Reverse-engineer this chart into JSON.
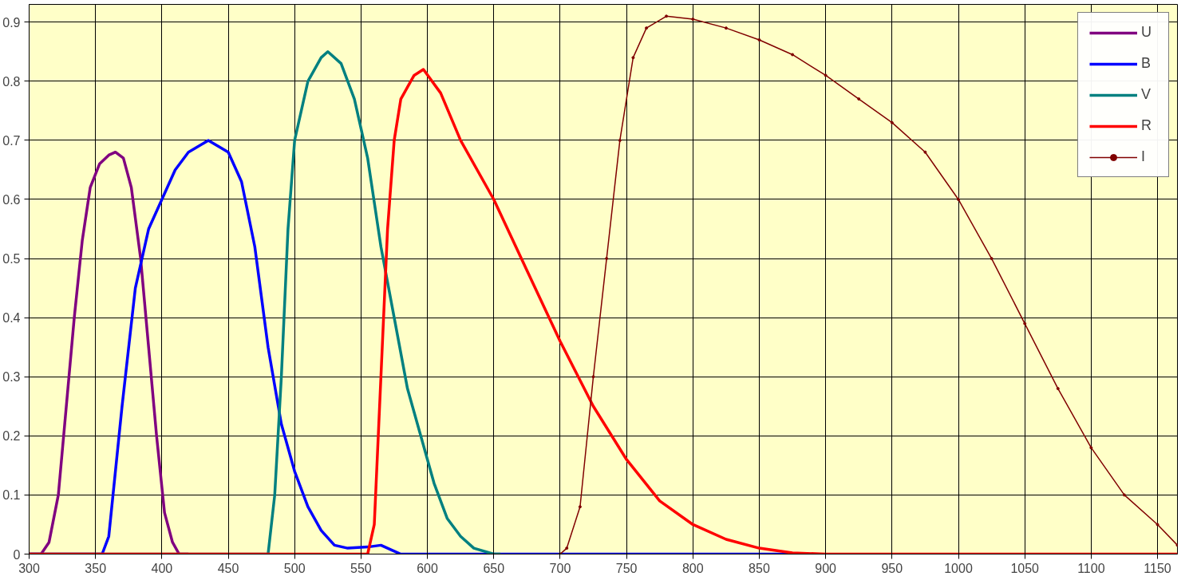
{
  "chart_data": {
    "type": "line",
    "xlim": [
      300,
      1165
    ],
    "ylim": [
      0,
      0.93
    ],
    "xticks": [
      300,
      350,
      400,
      450,
      500,
      550,
      600,
      650,
      700,
      750,
      800,
      850,
      900,
      950,
      1000,
      1050,
      1100,
      1150
    ],
    "yticks": [
      0,
      0.1,
      0.2,
      0.3,
      0.4,
      0.5,
      0.6,
      0.7,
      0.8,
      0.9
    ],
    "grid": true,
    "legend": "top right",
    "marker": "none",
    "series": [
      {
        "name": "U",
        "color": "#800080",
        "x": [
          300,
          309,
          315,
          322,
          328,
          334,
          340,
          346,
          353,
          360,
          365,
          371,
          377,
          384,
          390,
          396,
          402,
          408,
          413,
          420
        ],
        "values": [
          0,
          0,
          0.02,
          0.1,
          0.25,
          0.4,
          0.53,
          0.62,
          0.66,
          0.675,
          0.68,
          0.67,
          0.62,
          0.5,
          0.35,
          0.2,
          0.07,
          0.02,
          0,
          0
        ]
      },
      {
        "name": "B",
        "color": "#0000ff",
        "x": [
          300,
          355,
          360,
          370,
          380,
          390,
          400,
          410,
          420,
          435,
          450,
          460,
          470,
          480,
          490,
          500,
          510,
          520,
          530,
          540,
          555,
          565,
          575,
          580,
          890
        ],
        "values": [
          0,
          0,
          0.03,
          0.25,
          0.45,
          0.55,
          0.6,
          0.65,
          0.68,
          0.7,
          0.68,
          0.63,
          0.52,
          0.35,
          0.22,
          0.14,
          0.08,
          0.04,
          0.015,
          0.01,
          0.012,
          0.015,
          0.005,
          0,
          0
        ]
      },
      {
        "name": "V",
        "color": "#008080",
        "x": [
          300,
          480,
          485,
          490,
          495,
          500,
          510,
          520,
          525,
          535,
          545,
          555,
          565,
          575,
          585,
          595,
          605,
          615,
          625,
          635,
          650,
          655
        ],
        "values": [
          0,
          0,
          0.1,
          0.3,
          0.55,
          0.7,
          0.8,
          0.84,
          0.85,
          0.83,
          0.77,
          0.67,
          0.52,
          0.4,
          0.28,
          0.2,
          0.12,
          0.06,
          0.03,
          0.01,
          0,
          0
        ]
      },
      {
        "name": "R",
        "color": "#ff0000",
        "x": [
          300,
          555,
          560,
          565,
          570,
          575,
          580,
          590,
          597,
          610,
          625,
          650,
          675,
          700,
          725,
          750,
          775,
          800,
          825,
          850,
          875,
          900,
          1165
        ],
        "values": [
          0,
          0,
          0.05,
          0.3,
          0.55,
          0.7,
          0.77,
          0.81,
          0.82,
          0.78,
          0.7,
          0.6,
          0.48,
          0.36,
          0.25,
          0.16,
          0.09,
          0.05,
          0.025,
          0.01,
          0.002,
          0,
          0
        ]
      },
      {
        "name": "I",
        "color": "#800000",
        "marker": "circle",
        "x": [
          700,
          705,
          715,
          725,
          735,
          745,
          755,
          765,
          780,
          800,
          825,
          850,
          875,
          900,
          925,
          950,
          975,
          1000,
          1025,
          1050,
          1075,
          1100,
          1125,
          1150,
          1165
        ],
        "values": [
          0,
          0.01,
          0.08,
          0.3,
          0.5,
          0.7,
          0.84,
          0.89,
          0.91,
          0.905,
          0.89,
          0.87,
          0.845,
          0.81,
          0.77,
          0.73,
          0.68,
          0.6,
          0.5,
          0.39,
          0.28,
          0.18,
          0.1,
          0.05,
          0.015
        ]
      }
    ]
  }
}
